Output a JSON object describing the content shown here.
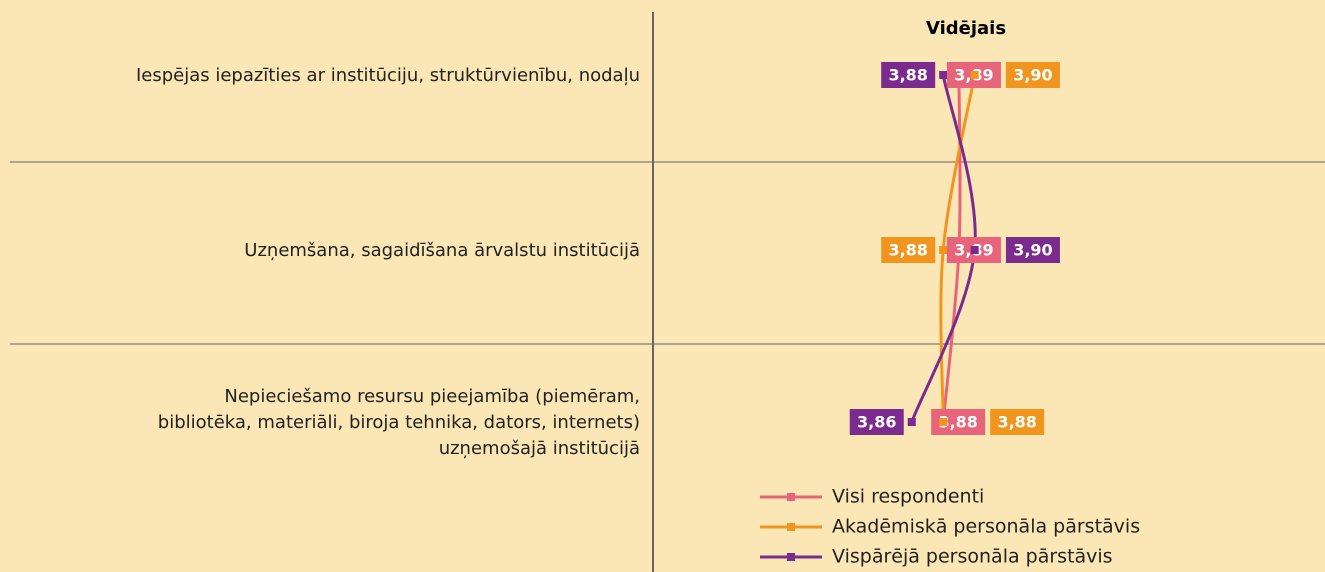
{
  "chart_data": {
    "type": "line",
    "orientation": "horizontal",
    "header": "Vidējais",
    "categories": [
      "Iespējas iepazīties ar institūciju, struktūrvienību, nodaļu",
      "Uzņemšana, sagaidīšana ārvalstu institūcijā",
      "Nepieciešamo resursu pieejamība (piemēram,\nbibliotēka, materiāli, biroja tehnika, dators, internets)\nuzņemošajā institūcijā"
    ],
    "xlim": [
      3.7,
      4.0
    ],
    "series": [
      {
        "name": "Visi respondenti",
        "color": "#e8647a",
        "values": [
          3.89,
          3.89,
          3.88
        ],
        "value_labels": [
          "3,89",
          "3,89",
          "3,88"
        ]
      },
      {
        "name": "Akadēmiskā personāla pārstāvis",
        "color": "#f0961e",
        "values": [
          3.9,
          3.88,
          3.88
        ],
        "value_labels": [
          "3,90",
          "3,88",
          "3,88"
        ]
      },
      {
        "name": "Vispārējā personāla pārstāvis",
        "color": "#7b2a8e",
        "values": [
          3.88,
          3.9,
          3.86
        ],
        "value_labels": [
          "3,88",
          "3,90",
          "3,86"
        ]
      }
    ]
  }
}
